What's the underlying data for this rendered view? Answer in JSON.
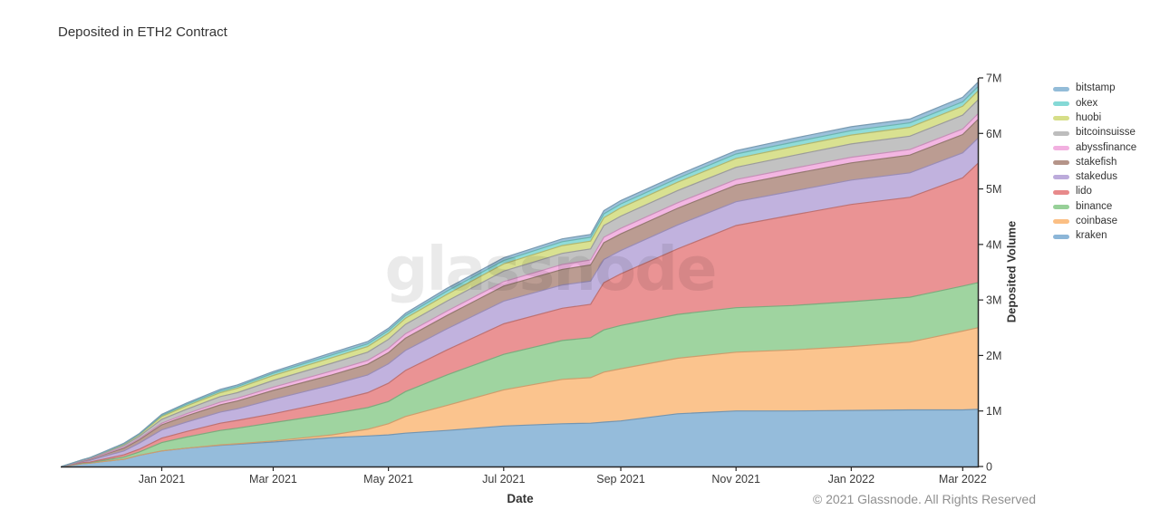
{
  "title": "Deposited in ETH2 Contract",
  "watermark": "glassnode",
  "footer": "© 2021 Glassnode. All Rights Reserved",
  "chart_data": {
    "type": "area",
    "stacked": true,
    "title": "Deposited in ETH2 Contract",
    "xlabel": "Date",
    "ylabel": "Deposited Volume",
    "value_unit": "millions of ETH",
    "ylim": [
      0,
      7
    ],
    "x_range": [
      "2020-11-09",
      "2022-03-09"
    ],
    "grid": false,
    "legend_position": "right-outside",
    "y_ticks": [
      {
        "v": 0,
        "label": "0"
      },
      {
        "v": 1,
        "label": "1M"
      },
      {
        "v": 2,
        "label": "2M"
      },
      {
        "v": 3,
        "label": "3M"
      },
      {
        "v": 4,
        "label": "4M"
      },
      {
        "v": 5,
        "label": "5M"
      },
      {
        "v": 6,
        "label": "6M"
      },
      {
        "v": 7,
        "label": "7M"
      }
    ],
    "x_ticks": [
      {
        "date": "2021-01-01",
        "label": "Jan 2021"
      },
      {
        "date": "2021-03-01",
        "label": "Mar 2021"
      },
      {
        "date": "2021-05-01",
        "label": "May 2021"
      },
      {
        "date": "2021-07-01",
        "label": "Jul 2021"
      },
      {
        "date": "2021-09-01",
        "label": "Sep 2021"
      },
      {
        "date": "2021-11-01",
        "label": "Nov 2021"
      },
      {
        "date": "2022-01-01",
        "label": "Jan 2022"
      },
      {
        "date": "2022-03-01",
        "label": "Mar 2022"
      }
    ],
    "dates": [
      "2020-11-09",
      "2020-11-20",
      "2020-11-24",
      "2020-12-01",
      "2020-12-12",
      "2020-12-20",
      "2021-01-01",
      "2021-01-14",
      "2021-02-01",
      "2021-02-10",
      "2021-03-01",
      "2021-04-01",
      "2021-04-20",
      "2021-05-01",
      "2021-05-10",
      "2021-06-01",
      "2021-07-01",
      "2021-08-01",
      "2021-08-16",
      "2021-08-23",
      "2021-09-01",
      "2021-10-01",
      "2021-11-01",
      "2021-12-01",
      "2022-01-01",
      "2022-02-01",
      "2022-03-01",
      "2022-03-09"
    ],
    "stack_order": "bottom-to-top",
    "series": [
      {
        "name": "kraken",
        "color": "#8cb6d8",
        "values": [
          0,
          0.05,
          0.06,
          0.09,
          0.13,
          0.2,
          0.28,
          0.33,
          0.38,
          0.4,
          0.44,
          0.52,
          0.55,
          0.57,
          0.6,
          0.65,
          0.73,
          0.77,
          0.78,
          0.8,
          0.82,
          0.95,
          1.0,
          1.0,
          1.01,
          1.02,
          1.02,
          1.03
        ]
      },
      {
        "name": "coinbase",
        "color": "#fbbf84",
        "values": [
          0,
          0,
          0,
          0,
          0,
          0,
          0,
          0,
          0.01,
          0.01,
          0.02,
          0.05,
          0.12,
          0.2,
          0.3,
          0.45,
          0.65,
          0.8,
          0.82,
          0.9,
          0.94,
          1.0,
          1.06,
          1.1,
          1.15,
          1.22,
          1.42,
          1.47
        ]
      },
      {
        "name": "binance",
        "color": "#97d098",
        "values": [
          0,
          0.01,
          0.01,
          0.02,
          0.04,
          0.06,
          0.15,
          0.2,
          0.26,
          0.28,
          0.33,
          0.38,
          0.39,
          0.4,
          0.45,
          0.55,
          0.64,
          0.7,
          0.72,
          0.76,
          0.78,
          0.79,
          0.8,
          0.8,
          0.81,
          0.81,
          0.81,
          0.81
        ]
      },
      {
        "name": "lido",
        "color": "#e88a8b",
        "values": [
          0,
          0.01,
          0.01,
          0.02,
          0.04,
          0.05,
          0.08,
          0.1,
          0.13,
          0.14,
          0.16,
          0.22,
          0.27,
          0.33,
          0.38,
          0.45,
          0.55,
          0.58,
          0.6,
          0.85,
          0.93,
          1.18,
          1.48,
          1.63,
          1.75,
          1.8,
          1.95,
          2.15
        ]
      },
      {
        "name": "stakedus",
        "color": "#bcabdb",
        "values": [
          0,
          0.02,
          0.03,
          0.05,
          0.07,
          0.11,
          0.15,
          0.17,
          0.2,
          0.21,
          0.26,
          0.3,
          0.32,
          0.35,
          0.36,
          0.38,
          0.41,
          0.42,
          0.42,
          0.42,
          0.42,
          0.43,
          0.43,
          0.43,
          0.44,
          0.44,
          0.45,
          0.45
        ]
      },
      {
        "name": "stakefish",
        "color": "#b59489",
        "values": [
          0,
          0.01,
          0.02,
          0.03,
          0.05,
          0.06,
          0.09,
          0.11,
          0.13,
          0.14,
          0.16,
          0.18,
          0.19,
          0.2,
          0.22,
          0.24,
          0.27,
          0.28,
          0.29,
          0.3,
          0.3,
          0.3,
          0.3,
          0.31,
          0.31,
          0.32,
          0.33,
          0.34
        ]
      },
      {
        "name": "abyssfinance",
        "color": "#f2b0e0",
        "values": [
          0,
          0.005,
          0.01,
          0.01,
          0.02,
          0.02,
          0.03,
          0.04,
          0.05,
          0.05,
          0.06,
          0.07,
          0.07,
          0.08,
          0.08,
          0.08,
          0.08,
          0.09,
          0.09,
          0.1,
          0.1,
          0.1,
          0.1,
          0.1,
          0.1,
          0.1,
          0.1,
          0.1
        ]
      },
      {
        "name": "bitcoinsuisse",
        "color": "#bdbdbd",
        "values": [
          0,
          0.01,
          0.01,
          0.02,
          0.03,
          0.04,
          0.07,
          0.08,
          0.1,
          0.1,
          0.12,
          0.14,
          0.15,
          0.16,
          0.17,
          0.18,
          0.19,
          0.2,
          0.2,
          0.21,
          0.22,
          0.22,
          0.22,
          0.23,
          0.24,
          0.24,
          0.25,
          0.25
        ]
      },
      {
        "name": "huobi",
        "color": "#d6de88",
        "values": [
          0,
          0.005,
          0.01,
          0.01,
          0.02,
          0.03,
          0.05,
          0.06,
          0.07,
          0.08,
          0.09,
          0.1,
          0.1,
          0.11,
          0.11,
          0.12,
          0.13,
          0.14,
          0.14,
          0.14,
          0.15,
          0.15,
          0.16,
          0.16,
          0.16,
          0.16,
          0.16,
          0.16
        ]
      },
      {
        "name": "okex",
        "color": "#85d9d6",
        "values": [
          0,
          0,
          0,
          0.005,
          0.01,
          0.01,
          0.02,
          0.03,
          0.03,
          0.03,
          0.04,
          0.05,
          0.05,
          0.05,
          0.05,
          0.06,
          0.06,
          0.07,
          0.07,
          0.07,
          0.07,
          0.07,
          0.08,
          0.08,
          0.08,
          0.08,
          0.08,
          0.08
        ]
      },
      {
        "name": "bitstamp",
        "color": "#93bcd8",
        "values": [
          0,
          0,
          0,
          0.005,
          0.01,
          0.01,
          0.02,
          0.02,
          0.03,
          0.03,
          0.03,
          0.04,
          0.04,
          0.04,
          0.04,
          0.05,
          0.05,
          0.05,
          0.05,
          0.06,
          0.06,
          0.06,
          0.06,
          0.07,
          0.07,
          0.07,
          0.08,
          0.08
        ]
      }
    ],
    "legend_top_to_bottom": [
      "bitstamp",
      "okex",
      "huobi",
      "bitcoinsuisse",
      "abyssfinance",
      "stakefish",
      "stakedus",
      "lido",
      "binance",
      "coinbase",
      "kraken"
    ]
  }
}
